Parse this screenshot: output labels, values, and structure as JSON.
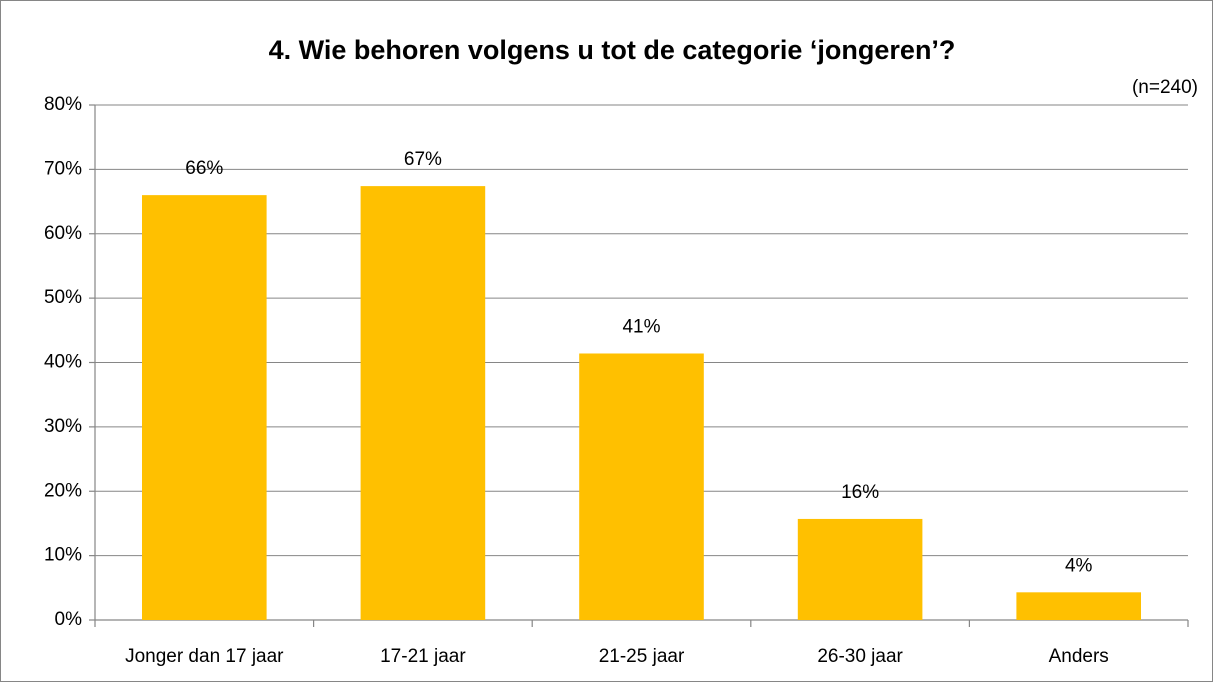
{
  "chart_data": {
    "type": "bar",
    "title": "4. Wie behoren volgens u tot de categorie ‘jongeren’?",
    "annotation": "(n=240)",
    "categories": [
      "Jonger dan 17 jaar",
      "17-21 jaar",
      "21-25 jaar",
      "26-30 jaar",
      "Anders"
    ],
    "values": [
      66,
      67.4,
      41.4,
      15.7,
      4.3
    ],
    "value_labels": [
      "66%",
      "67%",
      "41%",
      "16%",
      "4%"
    ],
    "color": "#ffc000",
    "ylim": [
      0,
      80
    ],
    "yticks": [
      {
        "value": 0,
        "label": "0%"
      },
      {
        "value": 10,
        "label": "10%"
      },
      {
        "value": 20,
        "label": "20%"
      },
      {
        "value": 30,
        "label": "30%"
      },
      {
        "value": 40,
        "label": "40%"
      },
      {
        "value": 50,
        "label": "50%"
      },
      {
        "value": 60,
        "label": "60%"
      },
      {
        "value": 70,
        "label": "70%"
      },
      {
        "value": 80,
        "label": "80%"
      }
    ],
    "grid": true
  }
}
